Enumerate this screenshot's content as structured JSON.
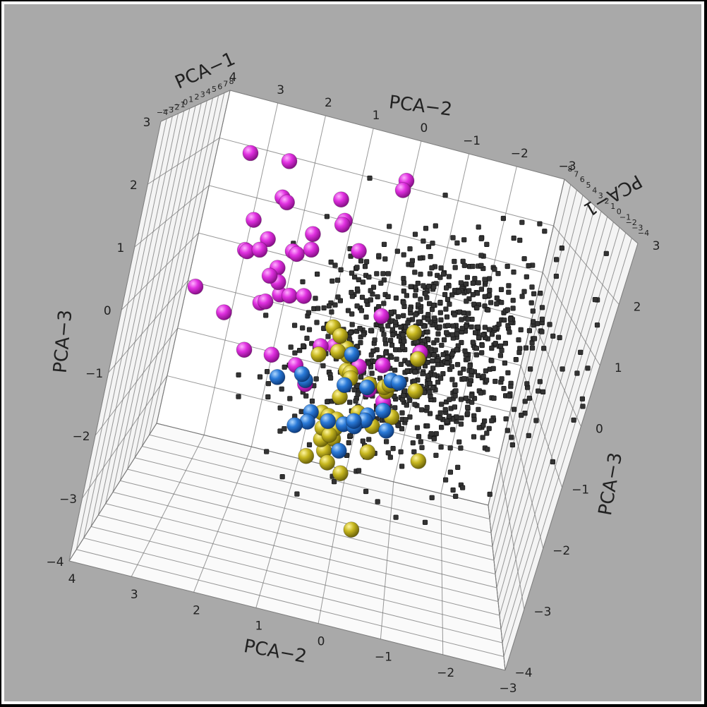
{
  "chart_data": {
    "type": "scatter",
    "projection": "3d",
    "axes": {
      "x": {
        "label": "PCA-1",
        "range": [
          -4,
          8
        ],
        "ticks": [
          -4,
          -3,
          -2,
          -1,
          0,
          1,
          2,
          3,
          4,
          5,
          6,
          7,
          8
        ]
      },
      "y": {
        "label": "PCA-2",
        "range": [
          -3,
          4
        ],
        "ticks": [
          4,
          3,
          2,
          1,
          0,
          -1,
          -2,
          -3
        ]
      },
      "z": {
        "label": "PCA-3",
        "range": [
          -4,
          3
        ],
        "ticks": [
          3,
          2,
          1,
          0,
          -1,
          -2,
          -3,
          -4
        ]
      }
    },
    "grid": true,
    "background_color": "#a9a9a9",
    "pane_color": "#ffffff",
    "series": [
      {
        "color": "#d020d0",
        "marker": "large-sphere",
        "count": 45
      },
      {
        "color": "#2a7ad8",
        "marker": "large-sphere",
        "count": 20
      },
      {
        "color": "#c8b820",
        "marker": "large-sphere",
        "count": 35
      },
      {
        "color": "#333333",
        "marker": "small-cube",
        "count": 950
      }
    ]
  }
}
